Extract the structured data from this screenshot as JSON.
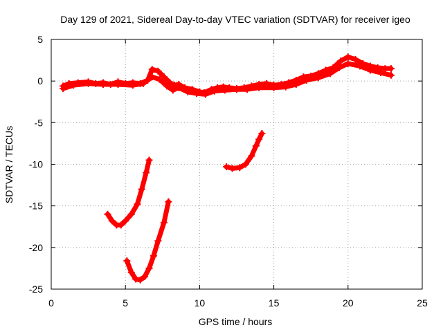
{
  "chart_data": {
    "type": "scatter",
    "title": "Day 129 of 2021, Sidereal Day-to-day VTEC variation (SDTVAR) for receiver igeo",
    "xlabel": "GPS time / hours",
    "ylabel": "SDTVAR / TECUs",
    "xlim": [
      0,
      25
    ],
    "ylim": [
      -25,
      5
    ],
    "xticks": [
      0,
      5,
      10,
      15,
      20,
      25
    ],
    "yticks": [
      5,
      0,
      -5,
      -10,
      -15,
      -20,
      -25
    ],
    "grid": true,
    "series_color": "#ff0000",
    "series": [
      {
        "name": "sdtvar-main-band",
        "points": [
          [
            0.8,
            -0.6
          ],
          [
            1.2,
            -0.3
          ],
          [
            1.8,
            -0.2
          ],
          [
            2.5,
            -0.1
          ],
          [
            3.0,
            -0.3
          ],
          [
            3.5,
            -0.2
          ],
          [
            4.0,
            -0.4
          ],
          [
            4.5,
            -0.1
          ],
          [
            5.0,
            -0.3
          ],
          [
            5.5,
            -0.2
          ],
          [
            6.0,
            -0.3
          ],
          [
            6.5,
            0.1
          ],
          [
            6.8,
            1.4
          ],
          [
            7.2,
            1.2
          ],
          [
            7.6,
            0.5
          ],
          [
            8.0,
            -0.2
          ],
          [
            8.3,
            -0.5
          ],
          [
            8.6,
            -0.4
          ],
          [
            9.0,
            -0.8
          ],
          [
            9.5,
            -1.0
          ],
          [
            10.0,
            -1.3
          ],
          [
            10.3,
            -1.4
          ],
          [
            10.8,
            -1.0
          ],
          [
            11.2,
            -0.8
          ],
          [
            11.6,
            -0.7
          ],
          [
            12.0,
            -0.8
          ],
          [
            12.5,
            -0.9
          ],
          [
            13.0,
            -0.8
          ],
          [
            13.5,
            -0.6
          ],
          [
            14.0,
            -0.4
          ],
          [
            14.5,
            -0.3
          ],
          [
            15.0,
            -0.5
          ],
          [
            15.5,
            -0.4
          ],
          [
            16.0,
            -0.2
          ],
          [
            16.5,
            0.1
          ],
          [
            17.0,
            0.5
          ],
          [
            17.5,
            0.6
          ],
          [
            18.0,
            0.9
          ],
          [
            18.5,
            1.3
          ],
          [
            19.0,
            1.6
          ],
          [
            19.5,
            2.4
          ],
          [
            20.0,
            2.9
          ],
          [
            20.5,
            2.6
          ],
          [
            21.0,
            2.1
          ],
          [
            21.5,
            1.8
          ],
          [
            22.0,
            1.6
          ],
          [
            22.5,
            1.5
          ],
          [
            22.9,
            1.5
          ]
        ]
      },
      {
        "name": "sdtvar-main-band-lower",
        "points": [
          [
            0.8,
            -0.9
          ],
          [
            1.5,
            -0.5
          ],
          [
            2.5,
            -0.3
          ],
          [
            3.5,
            -0.4
          ],
          [
            4.5,
            -0.4
          ],
          [
            5.5,
            -0.5
          ],
          [
            6.2,
            -0.3
          ],
          [
            6.8,
            0.5
          ],
          [
            7.3,
            0.2
          ],
          [
            7.8,
            -0.6
          ],
          [
            8.2,
            -1.1
          ],
          [
            8.6,
            -0.8
          ],
          [
            9.2,
            -1.3
          ],
          [
            9.8,
            -1.5
          ],
          [
            10.4,
            -1.6
          ],
          [
            11.0,
            -1.2
          ],
          [
            11.7,
            -1.1
          ],
          [
            12.5,
            -1.0
          ],
          [
            13.2,
            -1.0
          ],
          [
            14.0,
            -0.8
          ],
          [
            15.0,
            -0.8
          ],
          [
            15.8,
            -0.7
          ],
          [
            16.5,
            -0.4
          ],
          [
            17.2,
            0.1
          ],
          [
            18.0,
            0.4
          ],
          [
            18.8,
            0.9
          ],
          [
            19.4,
            1.6
          ],
          [
            20.0,
            2.1
          ],
          [
            20.8,
            1.8
          ],
          [
            21.5,
            1.3
          ],
          [
            22.2,
            1.0
          ],
          [
            22.9,
            0.7
          ]
        ]
      },
      {
        "name": "sdtvar-arc-a",
        "points": [
          [
            3.8,
            -16.0
          ],
          [
            4.1,
            -16.8
          ],
          [
            4.4,
            -17.3
          ],
          [
            4.7,
            -17.3
          ],
          [
            5.0,
            -16.8
          ],
          [
            5.4,
            -16.0
          ],
          [
            5.8,
            -14.8
          ],
          [
            6.1,
            -13.0
          ],
          [
            6.4,
            -11.0
          ],
          [
            6.6,
            -9.5
          ]
        ]
      },
      {
        "name": "sdtvar-arc-b",
        "points": [
          [
            5.1,
            -21.6
          ],
          [
            5.4,
            -23.0
          ],
          [
            5.7,
            -23.8
          ],
          [
            6.0,
            -23.9
          ],
          [
            6.3,
            -23.5
          ],
          [
            6.6,
            -22.5
          ],
          [
            6.9,
            -21.0
          ],
          [
            7.2,
            -19.2
          ],
          [
            7.6,
            -17.0
          ],
          [
            7.9,
            -14.5
          ]
        ]
      },
      {
        "name": "sdtvar-arc-c",
        "points": [
          [
            11.8,
            -10.3
          ],
          [
            12.2,
            -10.5
          ],
          [
            12.7,
            -10.4
          ],
          [
            13.1,
            -10.0
          ],
          [
            13.5,
            -9.0
          ],
          [
            13.8,
            -7.8
          ],
          [
            14.0,
            -7.0
          ],
          [
            14.2,
            -6.3
          ]
        ]
      }
    ]
  }
}
